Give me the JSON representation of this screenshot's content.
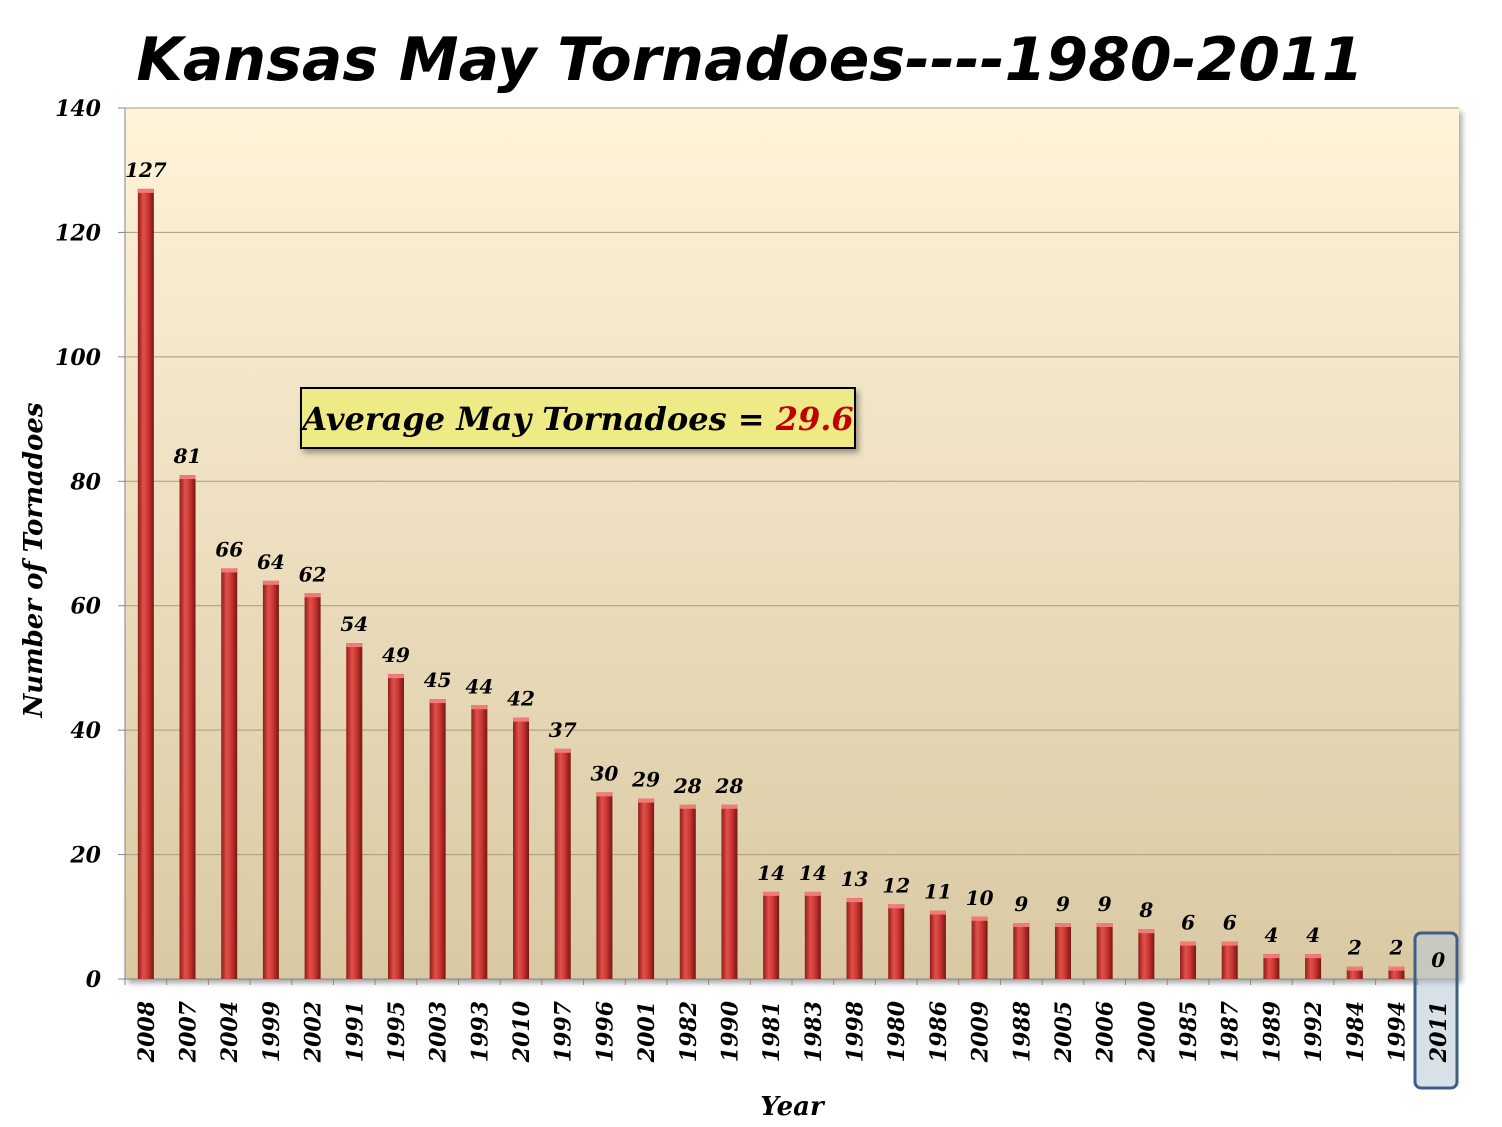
{
  "chart_data": {
    "type": "bar",
    "title": "Kansas May Tornadoes----1980-2011",
    "xlabel": "Year",
    "ylabel": "Number of Tornadoes",
    "ylim": [
      0,
      140
    ],
    "yticks": [
      0,
      20,
      40,
      60,
      80,
      100,
      120,
      140
    ],
    "grid": true,
    "categories": [
      "2008",
      "2007",
      "2004",
      "1999",
      "2002",
      "1991",
      "1995",
      "2003",
      "1993",
      "2010",
      "1997",
      "1996",
      "2001",
      "1982",
      "1990",
      "1981",
      "1983",
      "1998",
      "1980",
      "1986",
      "2009",
      "1988",
      "2005",
      "2006",
      "2000",
      "1985",
      "1987",
      "1989",
      "1992",
      "1984",
      "1994",
      "2011"
    ],
    "values": [
      127,
      81,
      66,
      64,
      62,
      54,
      49,
      45,
      44,
      42,
      37,
      30,
      29,
      28,
      28,
      14,
      14,
      13,
      12,
      11,
      10,
      9,
      9,
      9,
      8,
      6,
      6,
      4,
      4,
      2,
      2,
      0
    ],
    "highlight_category": "2011",
    "annotation": {
      "label": "Average May Tornadoes = ",
      "value": "29.6",
      "value_color": "#c00000"
    },
    "colors": {
      "bar": "#d03a36",
      "bar_dark": "#8e1d1a",
      "plot_bg_top": "#fff3d9",
      "plot_bg_bottom": "#d9c9a3",
      "annotation_bg": "#eeea86",
      "highlight_border": "#3f5e86",
      "highlight_fill": "#b8c8d6"
    }
  }
}
